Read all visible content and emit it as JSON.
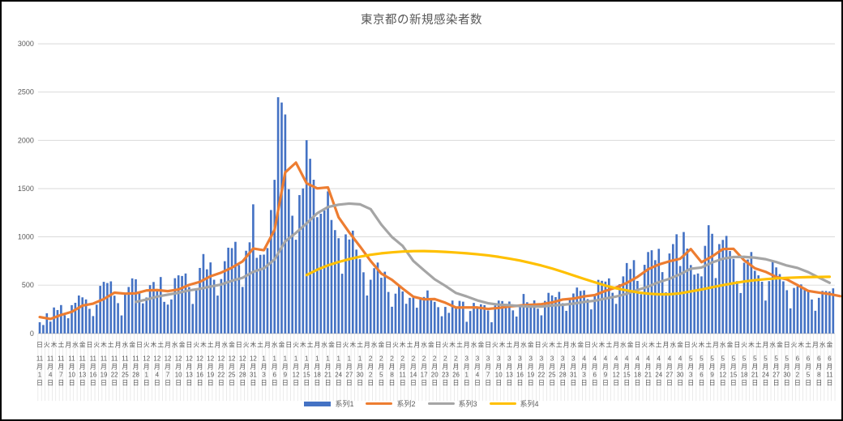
{
  "chart_data": {
    "type": "combo-bar-line",
    "title": "東京都の新規感染者数",
    "ylim": [
      0,
      3000
    ],
    "yticks": [
      0,
      500,
      1000,
      1500,
      2000,
      2500,
      3000
    ],
    "grid": true,
    "legend_position": "bottom",
    "days_total": 224,
    "date_tick_interval_days": 3,
    "date_tick_labels": [
      "11月1日",
      "11月4日",
      "11月7日",
      "11月10日",
      "11月13日",
      "11月16日",
      "11月19日",
      "11月22日",
      "11月25日",
      "11月28日",
      "12月1日",
      "12月4日",
      "12月7日",
      "12月10日",
      "12月13日",
      "12月16日",
      "12月19日",
      "12月22日",
      "12月25日",
      "12月28日",
      "12月31日",
      "1月3日",
      "1月6日",
      "1月9日",
      "1月12日",
      "1月15日",
      "1月18日",
      "1月21日",
      "1月24日",
      "1月27日",
      "1月30日",
      "2月2日",
      "2月5日",
      "2月8日",
      "2月11日",
      "2月14日",
      "2月17日",
      "2月20日",
      "2月23日",
      "2月26日",
      "3月1日",
      "3月4日",
      "3月7日",
      "3月10日",
      "3月13日",
      "3月16日",
      "3月19日",
      "3月22日",
      "3月25日",
      "3月28日",
      "3月31日",
      "4月3日",
      "4月6日",
      "4月9日",
      "4月12日",
      "4月15日",
      "4月18日",
      "4月21日",
      "4月24日",
      "4月27日",
      "4月30日",
      "5月3日",
      "5月6日",
      "5月9日",
      "5月12日",
      "5月15日",
      "5月18日",
      "5月21日",
      "5月24日",
      "5月27日",
      "5月30日",
      "6月2日",
      "6月5日",
      "6月8日",
      "6月11日"
    ],
    "dow_tick_interval_days": 2,
    "dow_tick_labels": "日火木土月水金日火木土月水金日火木土月水金日火木土月水金日火木土月水金日火木土月水金日火木土月水金日火木土月水金日火木土月水金日火木土月水金日火木土月水金日火木土月水金日火木土月水金日火木土月水金日火木土月水金日火木土月水金",
    "series": [
      {
        "name": "系列1",
        "type": "bar",
        "color": "#4472C4",
        "start_day": 0,
        "interval_days": 1,
        "values": [
          116,
          87,
          209,
          122,
          269,
          242,
          294,
          189,
          157,
          293,
          317,
          393,
          374,
          352,
          255,
          180,
          298,
          493,
          534,
          522,
          539,
          391,
          314,
          186,
          401,
          481,
          570,
          561,
          418,
          311,
          372,
          500,
          533,
          449,
          584,
          327,
          299,
          352,
          572,
          602,
          595,
          621,
          480,
          305,
          460,
          678,
          822,
          664,
          736,
          556,
          392,
          563,
          748,
          888,
          884,
          949,
          708,
          481,
          856,
          944,
          1337,
          783,
          814,
          816,
          884,
          1278,
          1591,
          2447,
          2392,
          2268,
          1494,
          1219,
          970,
          1433,
          1502,
          2001,
          1809,
          1592,
          1204,
          1240,
          1274,
          1471,
          1175,
          1070,
          986,
          618,
          1026,
          973,
          1064,
          868,
          769,
          633,
          393,
          556,
          676,
          734,
          577,
          639,
          429,
          276,
          412,
          491,
          434,
          307,
          369,
          371,
          266,
          350,
          378,
          445,
          353,
          327,
          272,
          178,
          275,
          213,
          340,
          270,
          337,
          329,
          121,
          232,
          316,
          279,
          301,
          293,
          237,
          116,
          290,
          340,
          335,
          304,
          330,
          239,
          175,
          300,
          409,
          323,
          303,
          342,
          256,
          187,
          337,
          420,
          394,
          376,
          430,
          313,
          234,
          364,
          414,
          475,
          440,
          446,
          355,
          249,
          399,
          555,
          545,
          537,
          570,
          421,
          306,
          510,
          591,
          729,
          667,
          759,
          543,
          405,
          711,
          843,
          861,
          759,
          876,
          635,
          425,
          828,
          925,
          1027,
          698,
          1050,
          879,
          708,
          609,
          621,
          591,
          907,
          1121,
          1032,
          573,
          925,
          969,
          1010,
          854,
          772,
          542,
          419,
          732,
          766,
          843,
          649,
          602,
          535,
          340,
          542,
          743,
          684,
          614,
          539,
          448,
          260,
          471,
          487,
          508,
          472,
          436,
          351,
          235,
          369,
          440,
          439,
          435,
          467
        ]
      },
      {
        "name": "系列2",
        "type": "line",
        "color": "#ED7D31",
        "start_day": 0,
        "interval_days": 3,
        "values": [
          170,
          150,
          191,
          224,
          288,
          309,
          355,
          422,
          412,
          415,
          445,
          449,
          438,
          455,
          503,
          534,
          592,
          630,
          681,
          746,
          880,
          862,
          1072,
          1668,
          1769,
          1555,
          1502,
          1513,
          1203,
          1046,
          901,
          751,
          620,
          555,
          465,
          380,
          354,
          356,
          318,
          268,
          269,
          269,
          254,
          265,
          279,
          289,
          297,
          303,
          320,
          351,
          361,
          384,
          397,
          441,
          476,
          523,
          586,
          665,
          714,
          747,
          773,
          874,
          737,
          798,
          874,
          876,
          757,
          675,
          638,
          585,
          559,
          500,
          440,
          423,
          408,
          386
        ]
      },
      {
        "name": "系列3",
        "type": "line",
        "color": "#A5A5A5",
        "start_day": 27,
        "interval_days": 3,
        "values": [
          326,
          351,
          381,
          402,
          420,
          446,
          463,
          485,
          507,
          545,
          576,
          638,
          675,
          766,
          954,
          1042,
          1140,
          1245,
          1309,
          1333,
          1345,
          1337,
          1287,
          1128,
          999,
          907,
          751,
          654,
          561,
          493,
          419,
          383,
          342,
          313,
          298,
          293,
          283,
          278,
          278,
          290,
          296,
          309,
          326,
          339,
          362,
          382,
          411,
          449,
          485,
          531,
          566,
          613,
          670,
          682,
          736,
          774,
          791,
          793,
          785,
          769,
          740,
          703,
          678,
          635,
          578,
          524
        ]
      },
      {
        "name": "系列4",
        "type": "line",
        "color": "#FFC000",
        "start_day": 75,
        "interval_days": 3,
        "values": [
          605,
          660,
          705,
          740,
          770,
          795,
          815,
          830,
          840,
          848,
          852,
          853,
          850,
          845,
          838,
          830,
          820,
          808,
          793,
          775,
          755,
          730,
          703,
          672,
          638,
          602,
          565,
          530,
          495,
          468,
          445,
          425,
          412,
          405,
          405,
          415,
          435,
          455,
          478,
          500,
          520,
          538,
          552,
          562,
          570,
          576,
          580,
          583,
          585,
          587
        ]
      }
    ]
  }
}
